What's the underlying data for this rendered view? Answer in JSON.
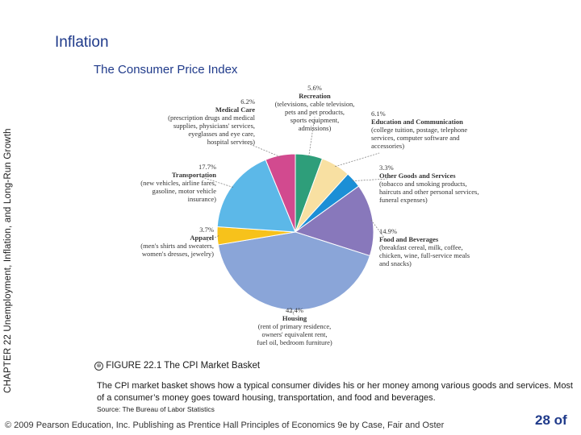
{
  "slide": {
    "title": "Inflation",
    "subtitle": "The Consumer Price Index",
    "side_label": "CHAPTER 22  Unemployment, Inflation, and Long-Run Growth",
    "figure_bullet": "⊛",
    "figure_title": "FIGURE 22.1  The CPI Market Basket",
    "caption": "The CPI market basket shows how a typical consumer divides his or her money among various goods and services. Most of a consumer’s money goes toward housing, transportation, and food and beverages.",
    "source": "Source: The Bureau of Labor Statistics",
    "footer": "© 2009 Pearson Education, Inc. Publishing as Prentice Hall   Principles of Economics 9e by Case, Fair and Oster",
    "page_number": "28 of"
  },
  "chart_data": {
    "type": "pie",
    "title": "",
    "start_angle_deg": 0,
    "slices": [
      {
        "name": "Recreation",
        "percent_label": "5.6%",
        "value": 5.6,
        "color": "#2e9e7a",
        "desc": [
          "(televisions, cable television,",
          "pets and pet products,",
          "sports equipment,",
          "admissions)"
        ]
      },
      {
        "name": "Education and Communication",
        "percent_label": "6.1%",
        "value": 6.1,
        "color": "#f8e0a2",
        "desc": [
          "(college tuition, postage, telephone",
          "services, computer software and",
          "accessories)"
        ]
      },
      {
        "name": "Other Goods and Services",
        "percent_label": "3.3%",
        "value": 3.3,
        "color": "#1b8fd6",
        "desc": [
          "(tobacco and smoking products,",
          "haircuts and other personal services,",
          "funeral expenses)"
        ]
      },
      {
        "name": "Food and Beverages",
        "percent_label": "14.9%",
        "value": 14.9,
        "color": "#8878bb",
        "desc": [
          "(breakfast cereal, milk, coffee,",
          "chicken, wine, full-service meals",
          "and snacks)"
        ]
      },
      {
        "name": "Housing",
        "percent_label": "42.4%",
        "value": 42.4,
        "color": "#8aa5d8",
        "desc": [
          "(rent of primary residence,",
          "owners' equivalent rent,",
          "fuel oil, bedroom furniture)"
        ]
      },
      {
        "name": "Apparel",
        "percent_label": "3.7%",
        "value": 3.7,
        "color": "#f7c21b",
        "desc": [
          "(men's shirts and sweaters,",
          "women's dresses, jewelry)"
        ]
      },
      {
        "name": "Transportation",
        "percent_label": "17.7%",
        "value": 17.7,
        "color": "#5cb8e8",
        "desc": [
          "(new vehicles, airline fares,",
          "gasoline, motor vehicle",
          "insurance)"
        ]
      },
      {
        "name": "Medical Care",
        "percent_label": "6.2%",
        "value": 6.2,
        "color": "#d24a8f",
        "desc": [
          "(prescription drugs and medical",
          "supplies, physicians' services,",
          "eyeglasses and eye care,",
          "hospital services)"
        ]
      }
    ]
  }
}
